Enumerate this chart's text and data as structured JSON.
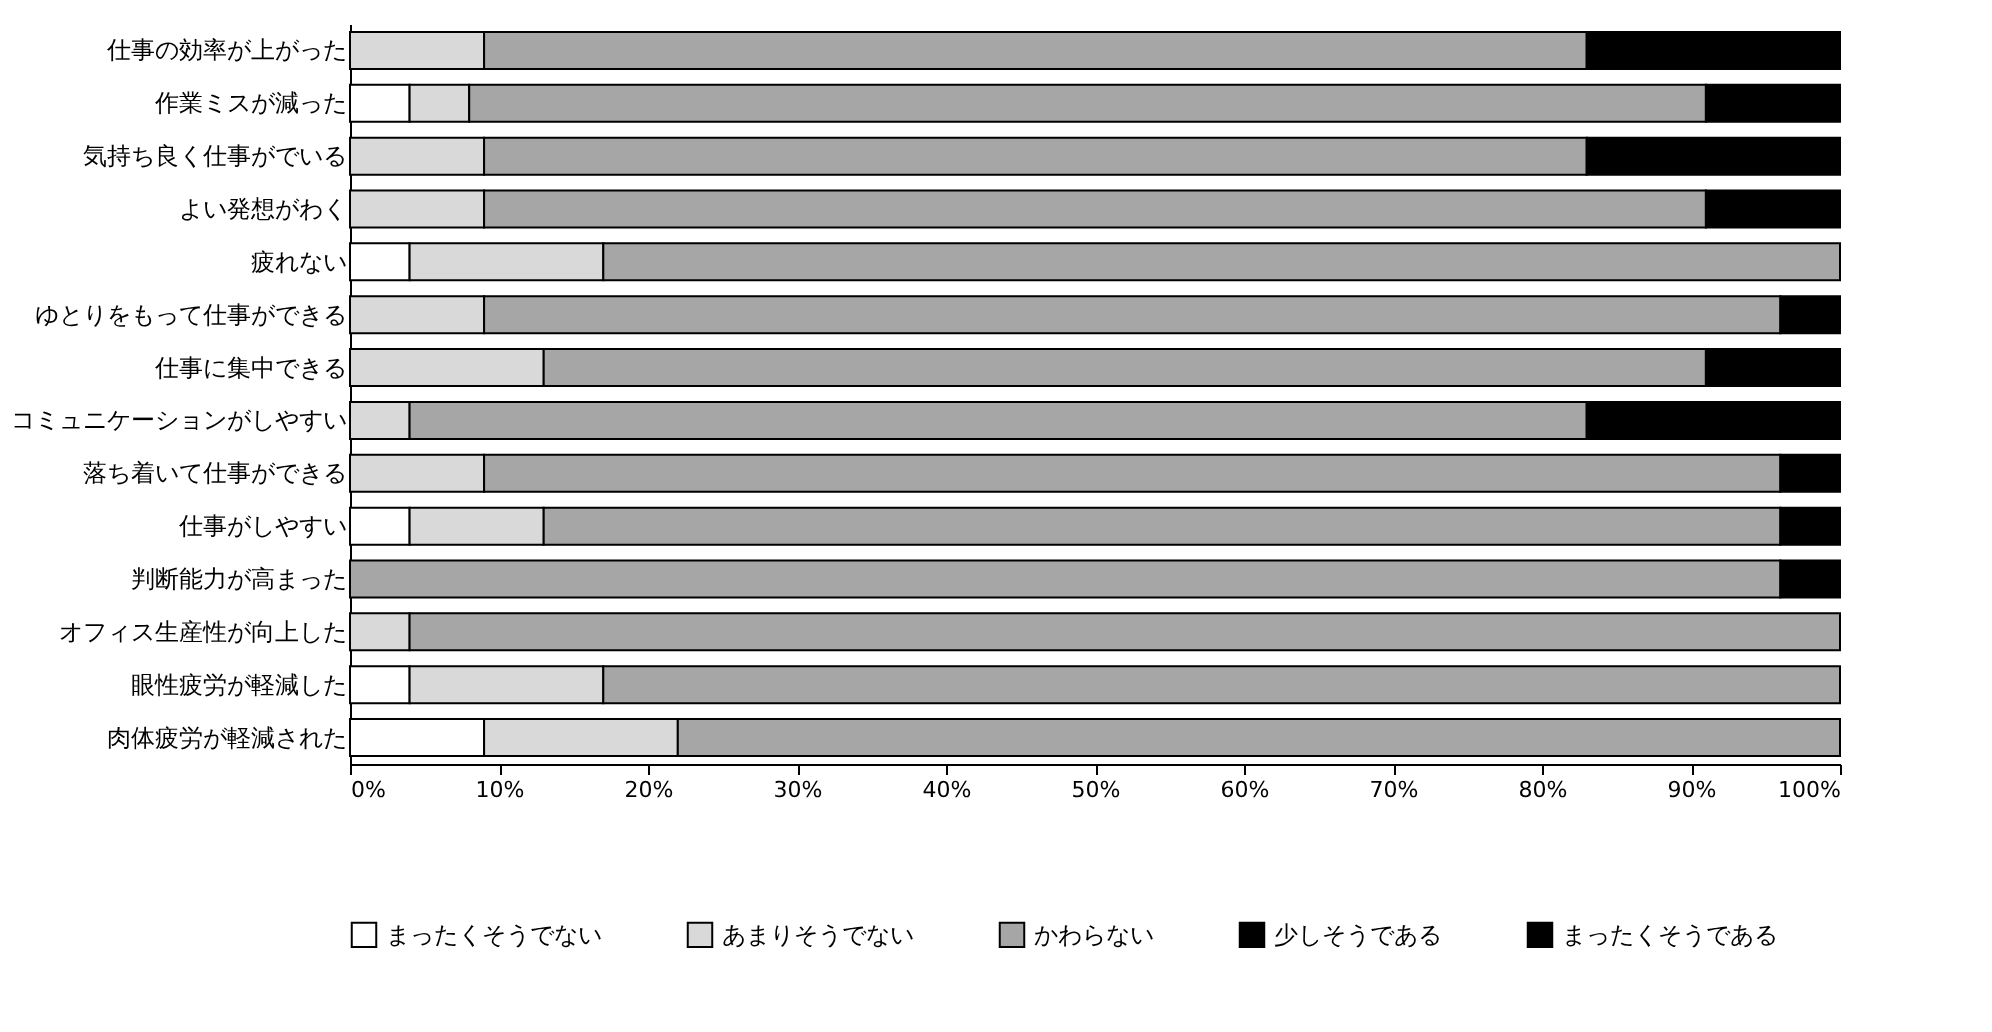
{
  "chart_data": {
    "type": "bar",
    "orientation": "horizontal",
    "stacked": true,
    "legend": "bottom",
    "grid": false,
    "categories": [
      "仕事の効率が上がった",
      "作業ミスが減った",
      "気持ち良く仕事がでいる",
      "よい発想がわく",
      "疲れない",
      "ゆとりをもって仕事ができる",
      "仕事に集中できる",
      "コミュニケーションがしやすい",
      "落ち着いて仕事ができる",
      "仕事がしやすい",
      "判断能力が高まった",
      "オフィス生産性が向上した",
      "眼性疲労が軽減した",
      "肉体疲労が軽減された"
    ],
    "series": [
      {
        "name": "まったくそうでない",
        "color": "#ffffff",
        "values": [
          0,
          4,
          0,
          0,
          4,
          0,
          0,
          0,
          0,
          4,
          0,
          0,
          4,
          9
        ]
      },
      {
        "name": "あまりそうでない",
        "color": "#d9d9d9",
        "values": [
          9,
          4,
          9,
          9,
          13,
          9,
          13,
          4,
          9,
          9,
          0,
          4,
          13,
          13
        ]
      },
      {
        "name": "かわらない",
        "color": "#a6a6a6",
        "values": [
          74,
          83,
          74,
          82,
          83,
          87,
          78,
          79,
          87,
          83,
          96,
          96,
          83,
          78
        ]
      },
      {
        "name": "少しそうである",
        "color": "#000000",
        "values": [
          17,
          9,
          17,
          9,
          0,
          4,
          9,
          17,
          4,
          4,
          4,
          0,
          0,
          0
        ]
      },
      {
        "name": "まったくそうである",
        "color": "#000000",
        "values": [
          0,
          0,
          0,
          0,
          0,
          0,
          0,
          0,
          0,
          0,
          0,
          0,
          0,
          0
        ]
      }
    ],
    "xlim": [
      0,
      100
    ],
    "xticks": [
      {
        "value": 0,
        "label": "0%"
      },
      {
        "value": 10,
        "label": "10%"
      },
      {
        "value": 20,
        "label": "20%"
      },
      {
        "value": 30,
        "label": "30%"
      },
      {
        "value": 40,
        "label": "40%"
      },
      {
        "value": 50,
        "label": "50%"
      },
      {
        "value": 60,
        "label": "60%"
      },
      {
        "value": 70,
        "label": "70%"
      },
      {
        "value": 80,
        "label": "80%"
      },
      {
        "value": 90,
        "label": "90%"
      },
      {
        "value": 100,
        "label": "100%"
      }
    ]
  }
}
